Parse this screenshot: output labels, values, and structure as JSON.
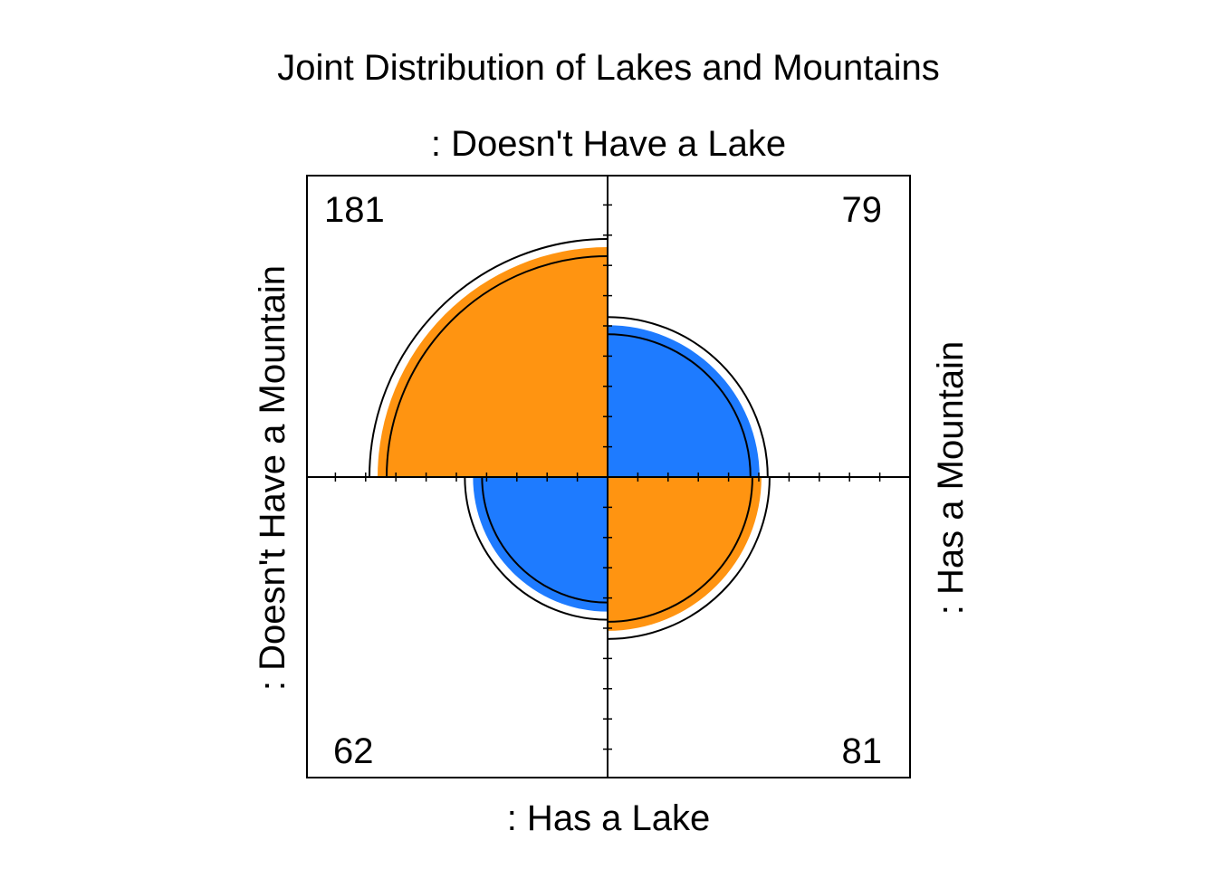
{
  "chart_data": {
    "type": "fourfold",
    "title": "Joint Distribution of Lakes and Mountains",
    "top_label": ": Doesn't Have a Lake",
    "bottom_label": ": Has a Lake",
    "left_label": ": Doesn't Have a Mountain",
    "right_label": ": Has a Mountain",
    "cells": [
      {
        "quadrant": "top-left",
        "lake": "Doesn't Have a Lake",
        "mountain": "Doesn't Have a Mountain",
        "count": 181,
        "label": "181",
        "color": "#FF9411"
      },
      {
        "quadrant": "top-right",
        "lake": "Doesn't Have a Lake",
        "mountain": "Has a Mountain",
        "count": 79,
        "label": "79",
        "color": "#1E7BFF"
      },
      {
        "quadrant": "bottom-left",
        "lake": "Has a Lake",
        "mountain": "Doesn't Have a Mountain",
        "count": 62,
        "label": "62",
        "color": "#1E7BFF"
      },
      {
        "quadrant": "bottom-right",
        "lake": "Has a Lake",
        "mountain": "Has a Mountain",
        "count": 81,
        "label": "81",
        "color": "#FF9411"
      }
    ],
    "confidence_rings": true,
    "axis_ticks": true
  }
}
